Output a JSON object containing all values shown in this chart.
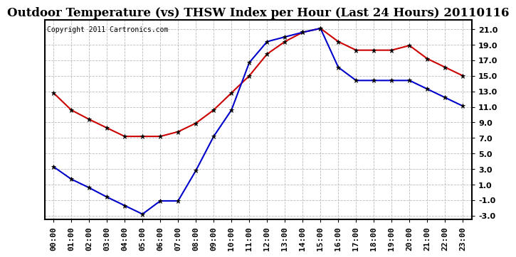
{
  "title": "Outdoor Temperature (vs) THSW Index per Hour (Last 24 Hours) 20110116",
  "copyright": "Copyright 2011 Cartronics.com",
  "hours": [
    "00:00",
    "01:00",
    "02:00",
    "03:00",
    "04:00",
    "05:00",
    "06:00",
    "07:00",
    "08:00",
    "09:00",
    "10:00",
    "11:00",
    "12:00",
    "13:00",
    "14:00",
    "15:00",
    "16:00",
    "17:00",
    "18:00",
    "19:00",
    "20:00",
    "21:00",
    "22:00",
    "23:00"
  ],
  "temp_red": [
    12.8,
    10.6,
    9.4,
    8.3,
    7.2,
    7.2,
    7.2,
    7.8,
    8.9,
    10.6,
    12.8,
    15.0,
    17.8,
    19.4,
    20.6,
    21.1,
    19.4,
    18.3,
    18.3,
    18.3,
    18.9,
    17.2,
    16.1,
    15.0
  ],
  "thsw_blue": [
    3.3,
    1.7,
    0.6,
    -0.6,
    -1.7,
    -2.8,
    -1.1,
    -1.1,
    2.8,
    7.2,
    10.6,
    16.7,
    19.4,
    20.0,
    20.6,
    21.1,
    16.1,
    14.4,
    14.4,
    14.4,
    14.4,
    13.3,
    12.2,
    11.1
  ],
  "red_color": "#cc0000",
  "blue_color": "#0000cc",
  "bg_color": "#ffffff",
  "grid_color": "#bbbbbb",
  "ylim": [
    -3.5,
    22.2
  ],
  "yticks": [
    -3.0,
    -1.0,
    1.0,
    3.0,
    5.0,
    7.0,
    9.0,
    11.0,
    13.0,
    15.0,
    17.0,
    19.0,
    21.0
  ],
  "title_fontsize": 12,
  "copyright_fontsize": 7,
  "axis_fontsize": 8
}
